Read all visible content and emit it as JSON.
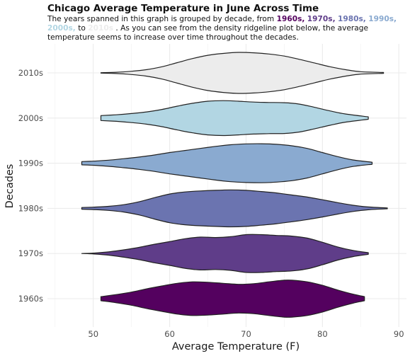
{
  "chart_data": {
    "type": "ridgeline",
    "title": "Chicago Average Temperature in June Across Time",
    "subtitle_parts": [
      {
        "text": "The years spanned in this graph is grouped by decade, from  ",
        "kind": "plain"
      },
      {
        "text": "1960s,",
        "kind": "dec",
        "color": "#54015f"
      },
      {
        "text": "  ",
        "kind": "plain"
      },
      {
        "text": "1970s,",
        "kind": "dec",
        "color": "#5f3d89"
      },
      {
        "text": "   ",
        "kind": "plain"
      },
      {
        "text": "1980s,",
        "kind": "dec",
        "color": "#6b74b0"
      },
      {
        "text": " ",
        "kind": "plain"
      },
      {
        "text": "1990s,",
        "kind": "dec",
        "color": "#8aaad0"
      },
      {
        "text": "   ",
        "kind": "plain"
      },
      {
        "text": "2000s,",
        "kind": "dec",
        "color": "#b2d6e3"
      },
      {
        "text": " to  ",
        "kind": "plain"
      },
      {
        "text": "2010s",
        "kind": "dec",
        "color": "#ececec"
      },
      {
        "text": " .   As you can see from the density ridgeline plot below, the average temperature seems to increase over time throughout the decades.",
        "kind": "plain"
      }
    ],
    "xlabel": "Average Temperature (F)",
    "ylabel": "Decades",
    "xlim": [
      44,
      91
    ],
    "xticks": [
      50,
      60,
      70,
      80,
      90
    ],
    "grid": true,
    "legend": "none",
    "series": [
      {
        "name": "1960s",
        "color": "#54015f",
        "min": 51,
        "max": 85.5,
        "x": [
          51,
          53,
          55,
          57,
          59,
          61,
          63,
          65,
          67,
          69,
          71,
          73,
          75,
          76,
          78,
          80,
          82,
          84,
          85.5
        ],
        "density": [
          0.1,
          0.2,
          0.32,
          0.48,
          0.62,
          0.75,
          0.82,
          0.8,
          0.75,
          0.7,
          0.73,
          0.82,
          0.9,
          0.9,
          0.82,
          0.65,
          0.42,
          0.22,
          0.1
        ]
      },
      {
        "name": "1970s",
        "color": "#5f3d89",
        "min": 48.5,
        "max": 86,
        "x": [
          48.5,
          50,
          52,
          54,
          56,
          58,
          60,
          62,
          64,
          66,
          68,
          70,
          72,
          74,
          76,
          78,
          80,
          82,
          84,
          86
        ],
        "density": [
          0.0,
          0.02,
          0.08,
          0.18,
          0.3,
          0.45,
          0.58,
          0.72,
          0.8,
          0.78,
          0.82,
          0.92,
          0.92,
          0.88,
          0.85,
          0.75,
          0.55,
          0.32,
          0.15,
          0.04
        ]
      },
      {
        "name": "1980s",
        "color": "#6b74b0",
        "min": 48.5,
        "max": 88.5,
        "x": [
          48.5,
          50,
          52,
          54,
          56,
          58,
          60,
          62,
          64,
          66,
          68,
          70,
          72,
          74,
          76,
          78,
          80,
          82,
          84,
          86,
          88.5
        ],
        "density": [
          0.04,
          0.06,
          0.1,
          0.18,
          0.32,
          0.52,
          0.7,
          0.8,
          0.85,
          0.88,
          0.9,
          0.88,
          0.82,
          0.75,
          0.65,
          0.55,
          0.42,
          0.28,
          0.15,
          0.07,
          0.02
        ]
      },
      {
        "name": "1990s",
        "color": "#8aaad0",
        "min": 48.5,
        "max": 86.5,
        "x": [
          48.5,
          50,
          52,
          54,
          56,
          58,
          60,
          62,
          64,
          66,
          68,
          70,
          72,
          74,
          76,
          78,
          80,
          82,
          84,
          86.5
        ],
        "density": [
          0.08,
          0.1,
          0.15,
          0.22,
          0.3,
          0.4,
          0.52,
          0.62,
          0.72,
          0.82,
          0.9,
          0.94,
          0.95,
          0.92,
          0.85,
          0.72,
          0.52,
          0.32,
          0.16,
          0.05
        ]
      },
      {
        "name": "2000s",
        "color": "#b2d6e3",
        "min": 51,
        "max": 86,
        "x": [
          51,
          53,
          55,
          57,
          59,
          61,
          63,
          65,
          67,
          69,
          71,
          73,
          75,
          77,
          79,
          81,
          83,
          86
        ],
        "density": [
          0.12,
          0.16,
          0.22,
          0.3,
          0.42,
          0.58,
          0.72,
          0.82,
          0.85,
          0.82,
          0.78,
          0.76,
          0.75,
          0.68,
          0.52,
          0.35,
          0.2,
          0.06
        ]
      },
      {
        "name": "2010s",
        "color": "#ececec",
        "min": 51,
        "max": 88,
        "x": [
          51,
          53,
          55,
          57,
          59,
          61,
          63,
          65,
          67,
          69,
          71,
          73,
          75,
          77,
          79,
          81,
          83,
          85,
          88
        ],
        "density": [
          0.01,
          0.03,
          0.08,
          0.16,
          0.3,
          0.5,
          0.7,
          0.86,
          0.95,
          1.0,
          0.98,
          0.92,
          0.82,
          0.66,
          0.48,
          0.3,
          0.16,
          0.06,
          0.02
        ]
      }
    ]
  }
}
